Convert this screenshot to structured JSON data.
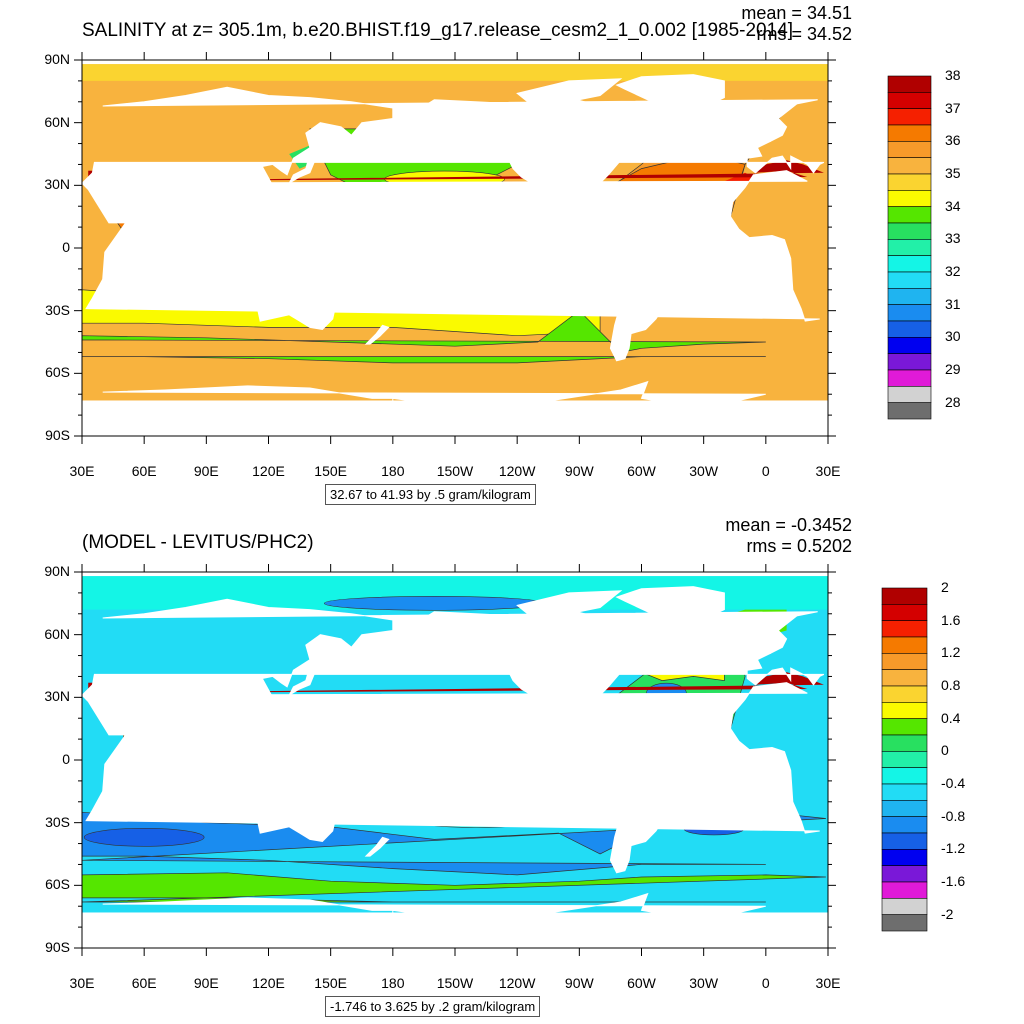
{
  "panels": [
    {
      "title": "SALINITY at z= 305.1m, b.e20.BHIST.f19_g17.release_cesm2_1_0.002 [1985-2014]",
      "mean": "mean = 34.51",
      "rms": "rms = 34.52",
      "units": "32.67 to 41.93 by .5 gram/kilogram",
      "lat_ticks": [
        "90N",
        "60N",
        "30N",
        "0",
        "30S",
        "60S",
        "90S"
      ],
      "lon_ticks": [
        "30E",
        "60E",
        "90E",
        "120E",
        "150E",
        "180",
        "150W",
        "120W",
        "90W",
        "60W",
        "30W",
        "0",
        "30E"
      ],
      "colorbar": {
        "labels": [
          "38",
          "37",
          "36",
          "35",
          "34",
          "33",
          "32",
          "31",
          "30",
          "29",
          "28"
        ],
        "colors": [
          "#b00000",
          "#d40000",
          "#f52000",
          "#f57a00",
          "#f79a2a",
          "#f8b33e",
          "#fad430",
          "#fafa00",
          "#55e600",
          "#28e060",
          "#22f0a8",
          "#14f5e6",
          "#22dcf5",
          "#1fb4f0",
          "#1a8cf0",
          "#1660e6",
          "#0000f0",
          "#7a18d8",
          "#e01ad8",
          "#d2d2d2",
          "#6e6e6e"
        ]
      },
      "map_colors": {
        "background": "#f8b33e",
        "fresh_band": "#55e600",
        "north_pacific": "#55e600",
        "subtropical": "#fafa00",
        "arctic": "#fad430",
        "atlantic": "#f79a2a",
        "atlantic_core": "#f57a00",
        "med_outflow": "#f52000",
        "arabian_sea": "#f57a00",
        "arabian_core": "#d40000",
        "med_sea": "#b00000",
        "southern": "#f8b33e",
        "coastal_cyan": "#28e060"
      }
    },
    {
      "title": "(MODEL - LEVITUS/PHC2)",
      "mean": "mean = -0.3452",
      "rms": "rms = 0.5202",
      "units": "-1.746 to 3.625 by .2 gram/kilogram",
      "lat_ticks": [
        "90N",
        "60N",
        "30N",
        "0",
        "30S",
        "60S",
        "90S"
      ],
      "lon_ticks": [
        "30E",
        "60E",
        "90E",
        "120E",
        "150E",
        "180",
        "150W",
        "120W",
        "90W",
        "60W",
        "30W",
        "0",
        "30E"
      ],
      "colorbar": {
        "labels": [
          "2",
          "1.6",
          "1.2",
          "0.8",
          "0.4",
          "0",
          "-0.4",
          "-0.8",
          "-1.2",
          "-1.6",
          "-2"
        ],
        "colors": [
          "#b00000",
          "#d40000",
          "#f52000",
          "#f57a00",
          "#f79a2a",
          "#f8b33e",
          "#fad430",
          "#fafa00",
          "#55e600",
          "#28e060",
          "#22f0a8",
          "#14f5e6",
          "#22dcf5",
          "#1fb4f0",
          "#1a8cf0",
          "#1660e6",
          "#0000f0",
          "#7a18d8",
          "#e01ad8",
          "#d2d2d2",
          "#6e6e6e"
        ]
      },
      "map_colors": {
        "background": "#22dcf5",
        "southern_blue": "#1a8cf0",
        "deep_blue": "#1660e6",
        "southern_green": "#55e600",
        "arctic": "#14f5e6",
        "atlantic_green": "#28e060",
        "atlantic_yellow": "#fafa00",
        "atlantic_lightgreen": "#55e600",
        "arabian": "#fad430",
        "med_sea": "#b00000",
        "pacific_light": "#14f5e6"
      }
    }
  ]
}
